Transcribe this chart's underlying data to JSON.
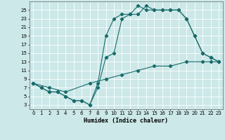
{
  "xlabel": "Humidex (Indice chaleur)",
  "xlim": [
    -0.5,
    23.5
  ],
  "ylim": [
    2,
    27
  ],
  "yticks": [
    3,
    5,
    7,
    9,
    11,
    13,
    15,
    17,
    19,
    21,
    23,
    25
  ],
  "xticks": [
    0,
    1,
    2,
    3,
    4,
    5,
    6,
    7,
    8,
    9,
    10,
    11,
    12,
    13,
    14,
    15,
    16,
    17,
    18,
    19,
    20,
    21,
    22,
    23
  ],
  "bg_color": "#cce8e8",
  "line_color": "#1a6b6b",
  "grid_color": "#ffffff",
  "line1_x": [
    0,
    1,
    2,
    3,
    4,
    5,
    6,
    7,
    8,
    9,
    10,
    11,
    12,
    13,
    14,
    15,
    16,
    17,
    18,
    19,
    20,
    21,
    22,
    23
  ],
  "line1_y": [
    8,
    7,
    6,
    6,
    5,
    4,
    4,
    3,
    8,
    19,
    23,
    24,
    24,
    26,
    25,
    25,
    25,
    25,
    25,
    23,
    19,
    15,
    14,
    13
  ],
  "line2_x": [
    0,
    1,
    2,
    3,
    4,
    5,
    6,
    7,
    8,
    9,
    10,
    11,
    12,
    13,
    14,
    15,
    16,
    17,
    18,
    19,
    20,
    21,
    22,
    23
  ],
  "line2_y": [
    8,
    7,
    6,
    6,
    5,
    4,
    4,
    3,
    7,
    14,
    15,
    23,
    24,
    24,
    26,
    25,
    25,
    25,
    25,
    23,
    19,
    15,
    14,
    13
  ],
  "line3_x": [
    0,
    2,
    4,
    7,
    9,
    11,
    13,
    15,
    17,
    19,
    21,
    22,
    23
  ],
  "line3_y": [
    8,
    7,
    6,
    8,
    9,
    10,
    11,
    12,
    12,
    13,
    13,
    13,
    13
  ]
}
